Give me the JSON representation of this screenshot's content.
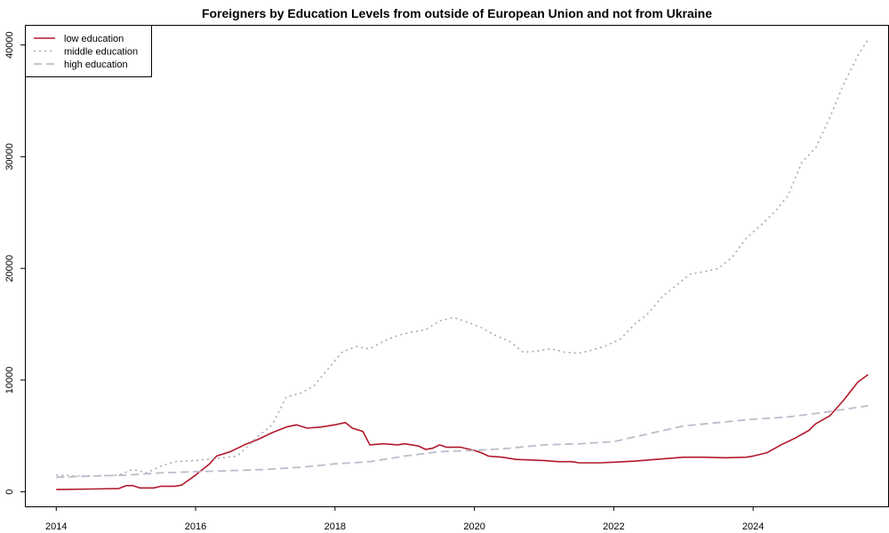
{
  "chart_data": {
    "type": "line",
    "title": "Foreigners by Education Levels from outside of European Union and not from Ukraine",
    "xlabel": "",
    "ylabel": "",
    "xlim": [
      2013.55,
      2025.95
    ],
    "ylim": [
      -1300,
      41800
    ],
    "x_ticks": [
      2014,
      2016,
      2018,
      2020,
      2022,
      2024
    ],
    "y_ticks": [
      0,
      10000,
      20000,
      30000,
      40000
    ],
    "grid": false,
    "legend_position": "top-left",
    "series": [
      {
        "name": "low education",
        "color": "#b2182b",
        "style": "solid",
        "points": [
          [
            2014.0,
            200
          ],
          [
            2014.5,
            250
          ],
          [
            2014.9,
            300
          ],
          [
            2015.0,
            550
          ],
          [
            2015.1,
            550
          ],
          [
            2015.2,
            350
          ],
          [
            2015.4,
            350
          ],
          [
            2015.5,
            500
          ],
          [
            2015.7,
            500
          ],
          [
            2015.8,
            600
          ],
          [
            2016.0,
            1500
          ],
          [
            2016.2,
            2500
          ],
          [
            2016.3,
            3200
          ],
          [
            2016.5,
            3600
          ],
          [
            2016.7,
            4200
          ],
          [
            2016.9,
            4700
          ],
          [
            2017.1,
            5300
          ],
          [
            2017.3,
            5800
          ],
          [
            2017.45,
            6000
          ],
          [
            2017.6,
            5700
          ],
          [
            2017.8,
            5800
          ],
          [
            2018.0,
            6000
          ],
          [
            2018.15,
            6200
          ],
          [
            2018.25,
            5700
          ],
          [
            2018.4,
            5400
          ],
          [
            2018.5,
            4200
          ],
          [
            2018.7,
            4300
          ],
          [
            2018.9,
            4200
          ],
          [
            2019.0,
            4300
          ],
          [
            2019.2,
            4100
          ],
          [
            2019.3,
            3800
          ],
          [
            2019.4,
            3900
          ],
          [
            2019.5,
            4200
          ],
          [
            2019.6,
            4000
          ],
          [
            2019.8,
            4000
          ],
          [
            2020.0,
            3700
          ],
          [
            2020.1,
            3500
          ],
          [
            2020.2,
            3200
          ],
          [
            2020.4,
            3100
          ],
          [
            2020.6,
            2900
          ],
          [
            2020.8,
            2850
          ],
          [
            2021.0,
            2800
          ],
          [
            2021.2,
            2700
          ],
          [
            2021.4,
            2700
          ],
          [
            2021.5,
            2600
          ],
          [
            2021.8,
            2600
          ],
          [
            2022.0,
            2650
          ],
          [
            2022.3,
            2750
          ],
          [
            2022.6,
            2900
          ],
          [
            2022.8,
            3000
          ],
          [
            2023.0,
            3100
          ],
          [
            2023.3,
            3100
          ],
          [
            2023.6,
            3050
          ],
          [
            2023.9,
            3100
          ],
          [
            2024.0,
            3200
          ],
          [
            2024.2,
            3500
          ],
          [
            2024.4,
            4200
          ],
          [
            2024.6,
            4800
          ],
          [
            2024.8,
            5500
          ],
          [
            2024.9,
            6100
          ],
          [
            2025.1,
            6800
          ],
          [
            2025.3,
            8200
          ],
          [
            2025.5,
            9800
          ],
          [
            2025.65,
            10500
          ]
        ]
      },
      {
        "name": "middle education",
        "color": "#aaaaaa",
        "style": "dotted",
        "points": [
          [
            2014.0,
            1500
          ],
          [
            2014.4,
            1400
          ],
          [
            2014.9,
            1500
          ],
          [
            2015.1,
            2000
          ],
          [
            2015.3,
            1700
          ],
          [
            2015.5,
            2300
          ],
          [
            2015.7,
            2700
          ],
          [
            2016.0,
            2800
          ],
          [
            2016.3,
            3000
          ],
          [
            2016.6,
            3200
          ],
          [
            2016.9,
            5000
          ],
          [
            2017.1,
            6000
          ],
          [
            2017.3,
            8500
          ],
          [
            2017.5,
            8800
          ],
          [
            2017.7,
            9500
          ],
          [
            2017.9,
            11000
          ],
          [
            2018.1,
            12500
          ],
          [
            2018.3,
            13000
          ],
          [
            2018.5,
            12800
          ],
          [
            2018.7,
            13500
          ],
          [
            2018.9,
            14000
          ],
          [
            2019.1,
            14300
          ],
          [
            2019.3,
            14500
          ],
          [
            2019.5,
            15300
          ],
          [
            2019.7,
            15600
          ],
          [
            2019.9,
            15200
          ],
          [
            2020.1,
            14700
          ],
          [
            2020.3,
            14000
          ],
          [
            2020.5,
            13500
          ],
          [
            2020.7,
            12500
          ],
          [
            2020.9,
            12600
          ],
          [
            2021.1,
            12800
          ],
          [
            2021.3,
            12500
          ],
          [
            2021.5,
            12400
          ],
          [
            2021.7,
            12700
          ],
          [
            2021.9,
            13100
          ],
          [
            2022.1,
            13700
          ],
          [
            2022.3,
            15000
          ],
          [
            2022.5,
            16000
          ],
          [
            2022.7,
            17500
          ],
          [
            2022.9,
            18500
          ],
          [
            2023.1,
            19500
          ],
          [
            2023.3,
            19700
          ],
          [
            2023.5,
            20000
          ],
          [
            2023.7,
            21000
          ],
          [
            2023.9,
            22700
          ],
          [
            2024.1,
            23800
          ],
          [
            2024.3,
            25000
          ],
          [
            2024.5,
            26500
          ],
          [
            2024.7,
            29500
          ],
          [
            2024.9,
            30800
          ],
          [
            2025.1,
            33500
          ],
          [
            2025.3,
            36500
          ],
          [
            2025.5,
            39000
          ],
          [
            2025.65,
            40500
          ]
        ]
      },
      {
        "name": "high education",
        "color": "#bcbccc",
        "style": "dashed",
        "points": [
          [
            2014.0,
            1300
          ],
          [
            2014.5,
            1400
          ],
          [
            2015.0,
            1500
          ],
          [
            2015.5,
            1700
          ],
          [
            2016.0,
            1800
          ],
          [
            2016.5,
            1900
          ],
          [
            2017.0,
            2000
          ],
          [
            2017.5,
            2200
          ],
          [
            2018.0,
            2500
          ],
          [
            2018.5,
            2700
          ],
          [
            2019.0,
            3200
          ],
          [
            2019.5,
            3600
          ],
          [
            2020.0,
            3700
          ],
          [
            2020.5,
            3900
          ],
          [
            2021.0,
            4200
          ],
          [
            2021.5,
            4300
          ],
          [
            2022.0,
            4500
          ],
          [
            2022.5,
            5200
          ],
          [
            2023.0,
            5900
          ],
          [
            2023.5,
            6200
          ],
          [
            2024.0,
            6500
          ],
          [
            2024.5,
            6700
          ],
          [
            2025.0,
            7100
          ],
          [
            2025.65,
            7700
          ]
        ]
      }
    ]
  }
}
